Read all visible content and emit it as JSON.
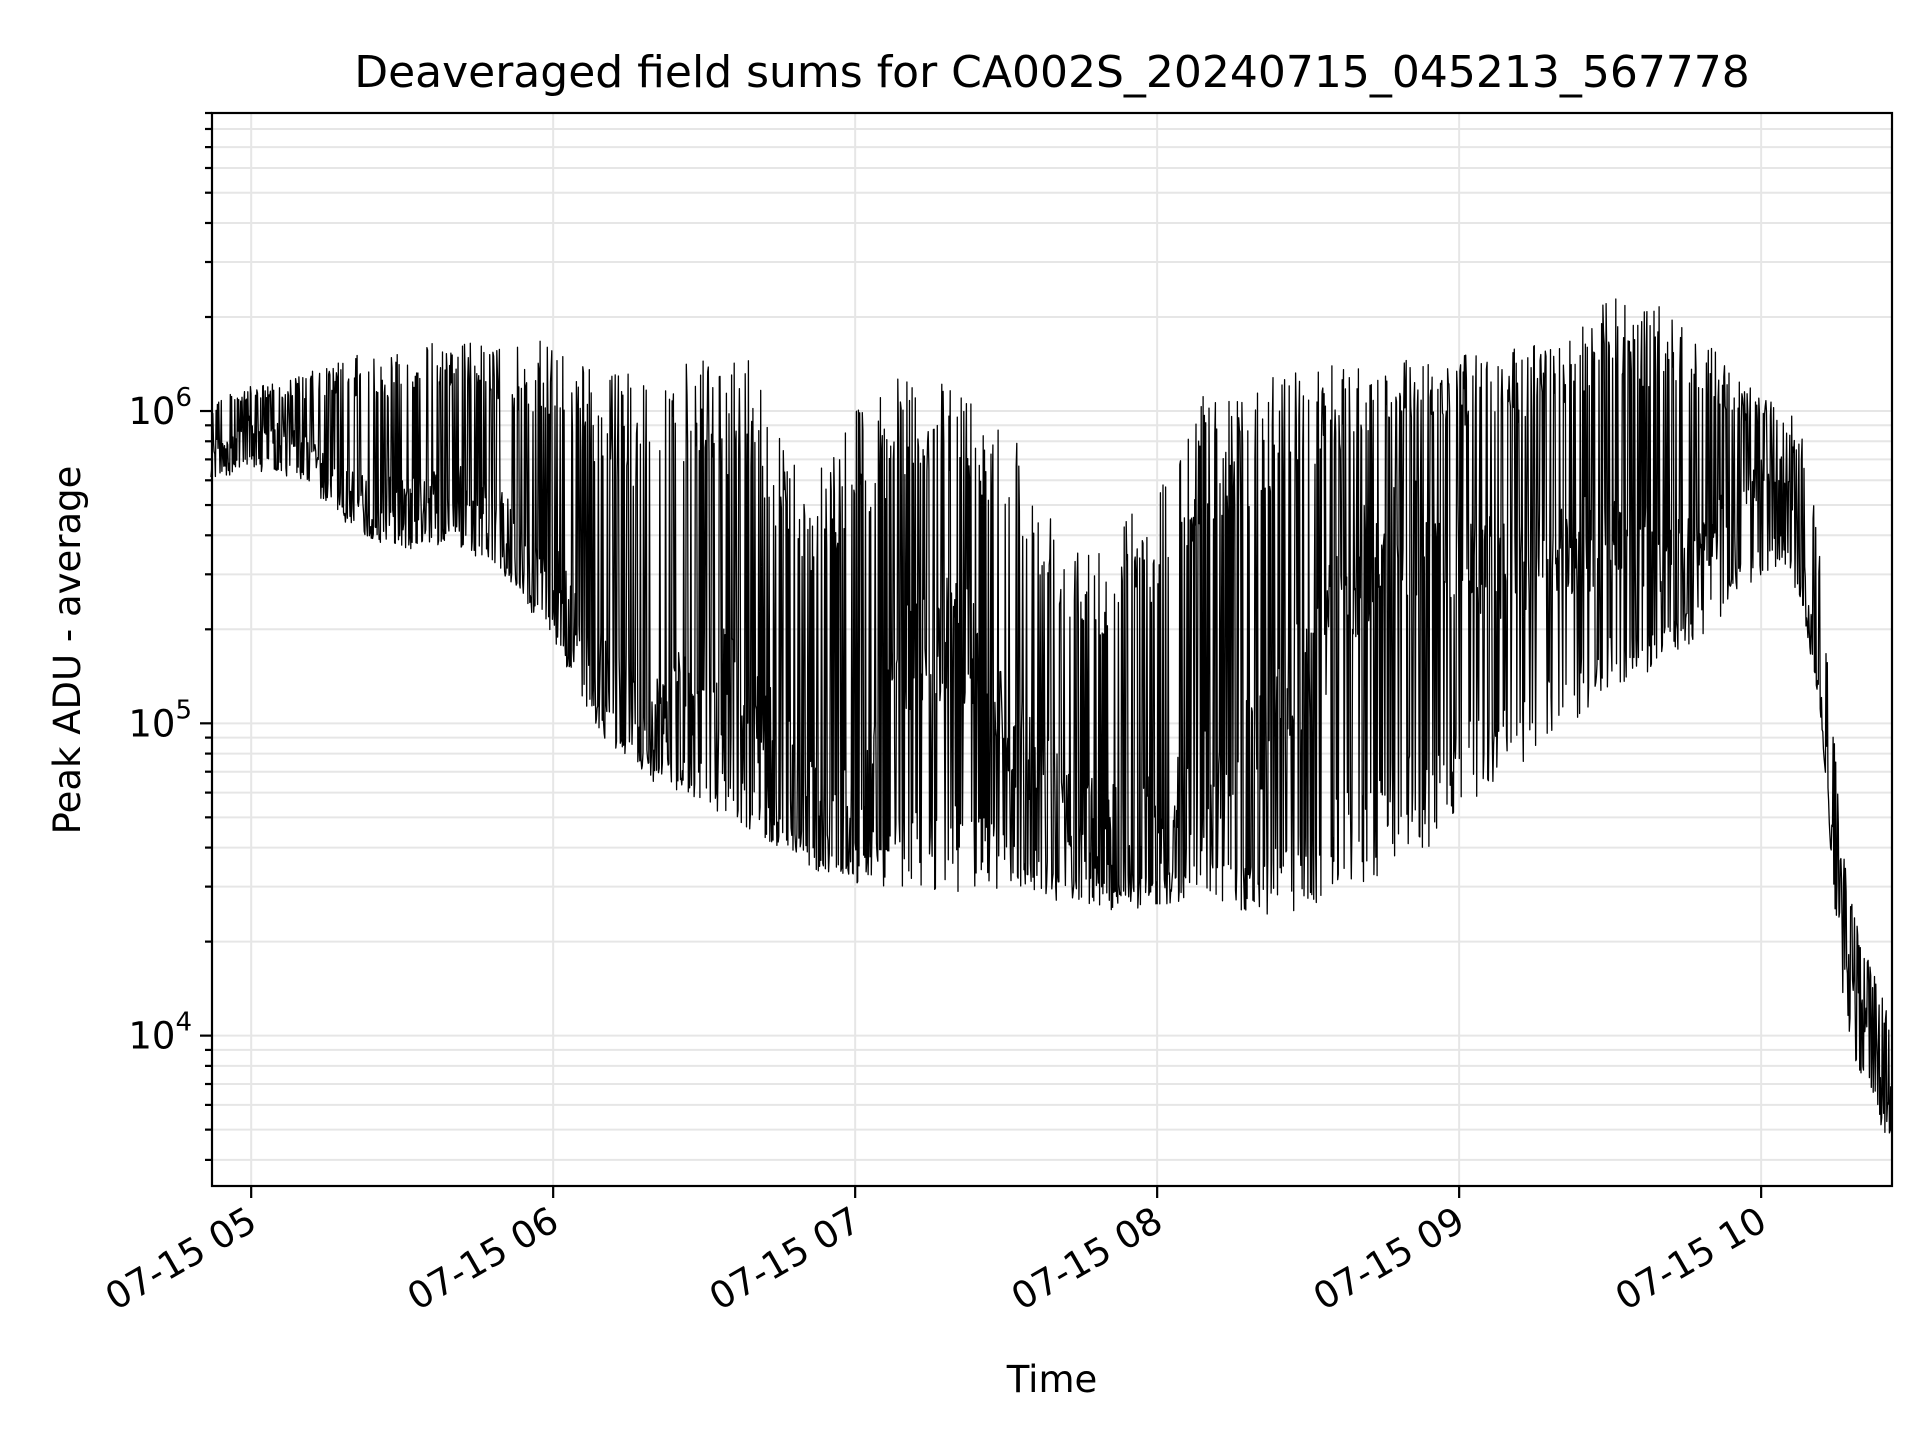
{
  "chart_data": {
    "type": "line",
    "title": "Deaveraged field sums for CA002S_20240715_045213_567778",
    "xlabel": "Time",
    "ylabel": "Peak ADU - average",
    "yscale": "log",
    "ylim": [
      3300,
      9000000
    ],
    "xlim": [
      "2024-07-15 04:52:13",
      "2024-07-15 10:26:00"
    ],
    "grid": "on",
    "legend": "none",
    "line_color": "#000000",
    "x_ticks": [
      {
        "value": "2024-07-15 05:00",
        "label": "07-15 05"
      },
      {
        "value": "2024-07-15 06:00",
        "label": "07-15 06"
      },
      {
        "value": "2024-07-15 07:00",
        "label": "07-15 07"
      },
      {
        "value": "2024-07-15 08:00",
        "label": "07-15 08"
      },
      {
        "value": "2024-07-15 09:00",
        "label": "07-15 09"
      },
      {
        "value": "2024-07-15 10:00",
        "label": "07-15 10"
      }
    ],
    "y_ticks": [
      {
        "value": 10000,
        "base": "10",
        "exp": "4"
      },
      {
        "value": 100000,
        "base": "10",
        "exp": "5"
      },
      {
        "value": 1000000,
        "base": "10",
        "exp": "6"
      }
    ],
    "series": [
      {
        "color": "#000000",
        "x": [
          "2024-07-15 04:52",
          "2024-07-15 05:00",
          "2024-07-15 05:10",
          "2024-07-15 05:20",
          "2024-07-15 05:30",
          "2024-07-15 05:40",
          "2024-07-15 05:50",
          "2024-07-15 06:00",
          "2024-07-15 06:10",
          "2024-07-15 06:20",
          "2024-07-15 06:30",
          "2024-07-15 06:40",
          "2024-07-15 06:50",
          "2024-07-15 07:00",
          "2024-07-15 07:10",
          "2024-07-15 07:20",
          "2024-07-15 07:30",
          "2024-07-15 07:40",
          "2024-07-15 07:50",
          "2024-07-15 08:00",
          "2024-07-15 08:10",
          "2024-07-15 08:20",
          "2024-07-15 08:30",
          "2024-07-15 08:40",
          "2024-07-15 08:50",
          "2024-07-15 09:00",
          "2024-07-15 09:10",
          "2024-07-15 09:20",
          "2024-07-15 09:30",
          "2024-07-15 09:40",
          "2024-07-15 09:50",
          "2024-07-15 10:00",
          "2024-07-15 10:04",
          "2024-07-15 10:08",
          "2024-07-15 10:12",
          "2024-07-15 10:16",
          "2024-07-15 10:20",
          "2024-07-15 10:24",
          "2024-07-15 10:26"
        ],
        "y": [
          750000,
          900000,
          800000,
          550000,
          500000,
          600000,
          450000,
          300000,
          140000,
          100000,
          150000,
          110000,
          60000,
          45000,
          150000,
          200000,
          100000,
          60000,
          45000,
          50000,
          60000,
          80000,
          150000,
          300000,
          400000,
          350000,
          300000,
          350000,
          400000,
          350000,
          400000,
          600000,
          700000,
          350000,
          120000,
          20000,
          12000,
          8000,
          6000
        ]
      }
    ],
    "envelope": {
      "upper": [
        1100000,
        1200000,
        1300000,
        1500000,
        1600000,
        1700000,
        1600000,
        1700000,
        1300000,
        1400000,
        1450000,
        1450000,
        600000,
        1100000,
        1300000,
        1200000,
        1000000,
        450000,
        400000,
        600000,
        1200000,
        1300000,
        1400000,
        1400000,
        1500000,
        1500000,
        1600000,
        1700000,
        2300000,
        2200000,
        1600000,
        1100000,
        1050000,
        900000,
        350000,
        40000,
        20000,
        14000,
        11000
      ],
      "lower": [
        600000,
        650000,
        600000,
        420000,
        350000,
        380000,
        300000,
        180000,
        90000,
        65000,
        55000,
        45000,
        35000,
        30000,
        30000,
        28000,
        30000,
        27000,
        25000,
        26000,
        28000,
        24000,
        25000,
        30000,
        35000,
        50000,
        70000,
        90000,
        130000,
        150000,
        200000,
        300000,
        300000,
        250000,
        100000,
        12000,
        7000,
        5000,
        4500
      ]
    }
  }
}
